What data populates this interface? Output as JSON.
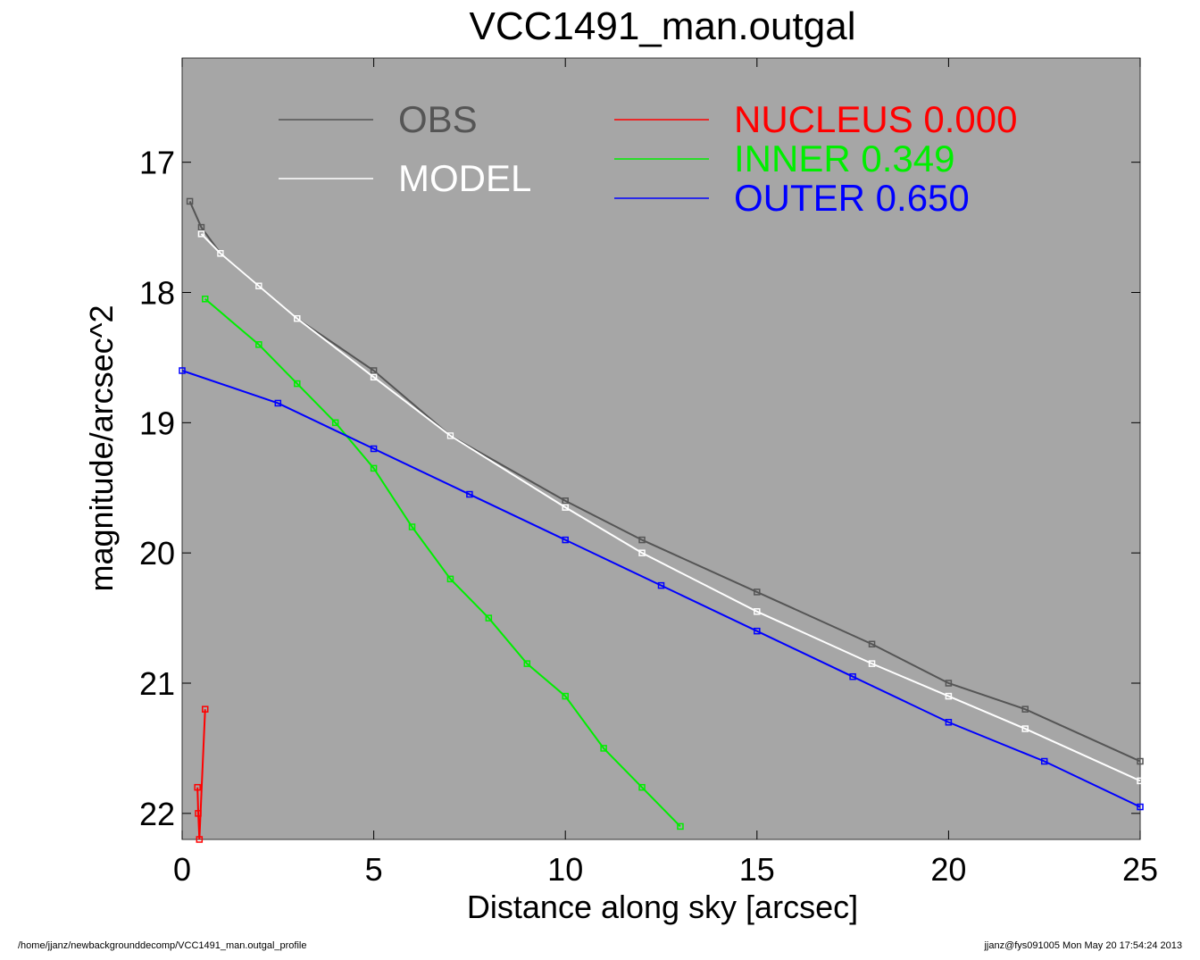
{
  "chart_data": {
    "type": "scatter",
    "title": "VCC1491_man.outgal",
    "xlabel": "Distance along sky [arcsec]",
    "ylabel": "magnitude/arcsec^2",
    "xlim": [
      0,
      25
    ],
    "ylim": [
      22.2,
      16.2
    ],
    "y_inverted": true,
    "xticks": [
      0,
      5,
      10,
      15,
      20,
      25
    ],
    "yticks": [
      17,
      18,
      19,
      20,
      21,
      22
    ],
    "grid": false,
    "legend_placement": "top",
    "plot_background": "#a6a6a6",
    "legend": [
      {
        "label": "OBS",
        "value": "",
        "color": "#555555"
      },
      {
        "label": "MODEL",
        "value": "",
        "color": "#ffffff"
      },
      {
        "label": "NUCLEUS",
        "value": "0.000",
        "color": "#ff0000"
      },
      {
        "label": "INNER",
        "value": "0.349",
        "color": "#00ee00"
      },
      {
        "label": "OUTER",
        "value": "0.650",
        "color": "#0000ff"
      }
    ],
    "series": [
      {
        "name": "OBS",
        "color": "#555555",
        "points": [
          [
            0.2,
            17.3
          ],
          [
            0.5,
            17.5
          ],
          [
            1,
            17.7
          ],
          [
            2,
            17.95
          ],
          [
            3,
            18.2
          ],
          [
            5,
            18.6
          ],
          [
            7,
            19.1
          ],
          [
            10,
            19.6
          ],
          [
            12,
            19.9
          ],
          [
            15,
            20.3
          ],
          [
            18,
            20.7
          ],
          [
            20,
            21.0
          ],
          [
            22,
            21.2
          ],
          [
            25,
            21.6
          ]
        ]
      },
      {
        "name": "MODEL",
        "color": "#ffffff",
        "points": [
          [
            0.5,
            17.55
          ],
          [
            1,
            17.7
          ],
          [
            2,
            17.95
          ],
          [
            3,
            18.2
          ],
          [
            5,
            18.65
          ],
          [
            7,
            19.1
          ],
          [
            10,
            19.65
          ],
          [
            12,
            20.0
          ],
          [
            15,
            20.45
          ],
          [
            18,
            20.85
          ],
          [
            20,
            21.1
          ],
          [
            22,
            21.35
          ],
          [
            25,
            21.75
          ]
        ]
      },
      {
        "name": "NUCLEUS",
        "color": "#ff0000",
        "points": [
          [
            0.4,
            21.8
          ],
          [
            0.42,
            22.0
          ],
          [
            0.45,
            22.2
          ],
          [
            0.6,
            21.2
          ]
        ]
      },
      {
        "name": "INNER",
        "color": "#00ee00",
        "points": [
          [
            0.6,
            18.05
          ],
          [
            2,
            18.4
          ],
          [
            3,
            18.7
          ],
          [
            4,
            19.0
          ],
          [
            5,
            19.35
          ],
          [
            6,
            19.8
          ],
          [
            7,
            20.2
          ],
          [
            8,
            20.5
          ],
          [
            9,
            20.85
          ],
          [
            10,
            21.1
          ],
          [
            11,
            21.5
          ],
          [
            12,
            21.8
          ],
          [
            13,
            22.1
          ]
        ]
      },
      {
        "name": "OUTER",
        "color": "#0000ff",
        "points": [
          [
            0,
            18.6
          ],
          [
            2.5,
            18.85
          ],
          [
            5,
            19.2
          ],
          [
            7.5,
            19.55
          ],
          [
            10,
            19.9
          ],
          [
            12.5,
            20.25
          ],
          [
            15,
            20.6
          ],
          [
            17.5,
            20.95
          ],
          [
            20,
            21.3
          ],
          [
            22.5,
            21.6
          ],
          [
            25,
            21.95
          ]
        ]
      }
    ]
  },
  "footer": {
    "path": "/home/jjanz/newbackgrounddecomp/VCC1491_man.outgal_profile",
    "stamp": "jjanz@fys091005  Mon May 20 17:54:24 2013"
  }
}
